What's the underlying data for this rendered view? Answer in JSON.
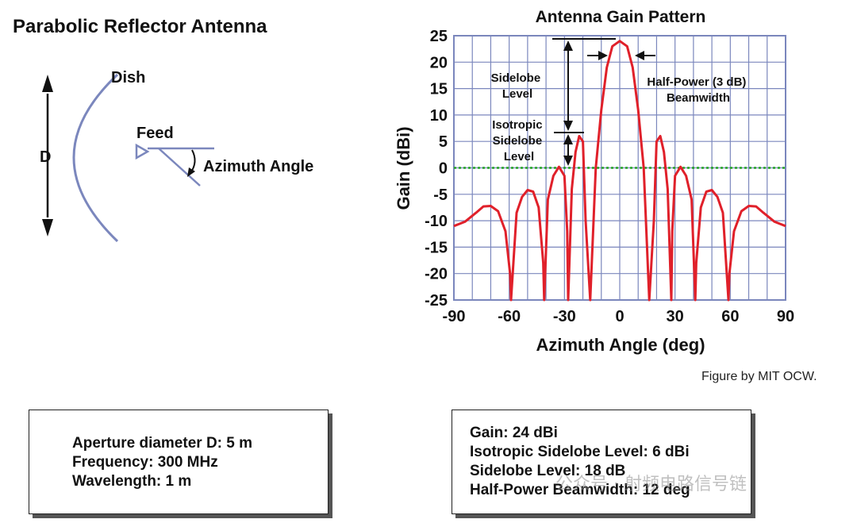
{
  "diagram": {
    "title": "Parabolic Reflector Antenna",
    "dish_label": "Dish",
    "d_label": "D",
    "feed_label": "Feed",
    "angle_label": "Azimuth Angle",
    "line_color": "#7b87bd"
  },
  "chart_data": {
    "type": "line",
    "title": "Antenna Gain Pattern",
    "xlabel": "Azimuth Angle (deg)",
    "ylabel": "Gain (dBi)",
    "xlim": [
      -90,
      90
    ],
    "ylim": [
      -25,
      25
    ],
    "xticks": [
      -90,
      -60,
      -30,
      0,
      30,
      60,
      90
    ],
    "yticks": [
      25,
      20,
      15,
      10,
      5,
      0,
      -5,
      -10,
      -15,
      -20,
      -25
    ],
    "grid": true,
    "series": [
      {
        "color": "#e0202a",
        "x": [
          -90,
          -84,
          -78,
          -74,
          -70,
          -66,
          -62,
          -59.5,
          -59,
          -56,
          -53,
          -50,
          -47,
          -44,
          -41.5,
          -41,
          -39,
          -36,
          -33,
          -30,
          -28.5,
          -28,
          -26,
          -24,
          -22,
          -20,
          -18.5,
          -16,
          -13,
          -10,
          -7,
          -4,
          0,
          4,
          7,
          10,
          13,
          16,
          18.5,
          20,
          22,
          24,
          26,
          28,
          28.5,
          30,
          33,
          36,
          39,
          41,
          41.5,
          44,
          47,
          50,
          53,
          56,
          59,
          59.5,
          62,
          66,
          70,
          74,
          78,
          84,
          90
        ],
        "y": [
          -11,
          -10.2,
          -8.5,
          -7.3,
          -7.2,
          -8.2,
          -12,
          -20,
          -25,
          -8.5,
          -5.5,
          -4.2,
          -4.5,
          -7.5,
          -18,
          -25,
          -6,
          -1.5,
          0.2,
          -1.5,
          -12,
          -25,
          -4,
          3,
          6,
          5,
          -10,
          -25,
          0,
          11,
          19,
          23,
          24,
          23,
          19,
          11,
          0,
          -25,
          -10,
          5,
          6,
          3,
          -4,
          -25,
          -12,
          -1.5,
          0.2,
          -1.5,
          -6,
          -25,
          -18,
          -7.5,
          -4.5,
          -4.2,
          -5.5,
          -8.5,
          -25,
          -20,
          -12,
          -8.2,
          -7.2,
          -7.3,
          -8.5,
          -10.2,
          -11
        ]
      },
      {
        "name": "isotropic",
        "color": "#22a022",
        "style": "dotted",
        "x": [
          -90,
          90
        ],
        "y": [
          0,
          0
        ]
      }
    ],
    "annotations": [
      {
        "text": "Sidelobe Level",
        "lines": [
          "Sidelobe",
          "Level"
        ]
      },
      {
        "text": "Isotropic Sidelobe Level",
        "lines": [
          "Isotropic",
          "Sidelobe",
          "Level"
        ]
      },
      {
        "text": "Half-Power (3 dB) Beamwidth",
        "lines": [
          "Half-Power (3 dB)",
          "Beamwidth"
        ]
      }
    ],
    "grid_color": "#7b87bd"
  },
  "credit": "Figure by MIT OCW.",
  "box_left": {
    "lines": [
      "Aperture diameter D:  5 m",
      "Frequency:  300 MHz",
      "Wavelength:  1 m"
    ]
  },
  "box_right": {
    "lines": [
      "Gain:  24 dBi",
      "Isotropic Sidelobe Level:  6 dBi",
      "Sidelobe Level:  18 dB",
      "Half-Power Beamwidth:  12 deg"
    ]
  },
  "watermark": "公众号 · 射频电路信号链"
}
